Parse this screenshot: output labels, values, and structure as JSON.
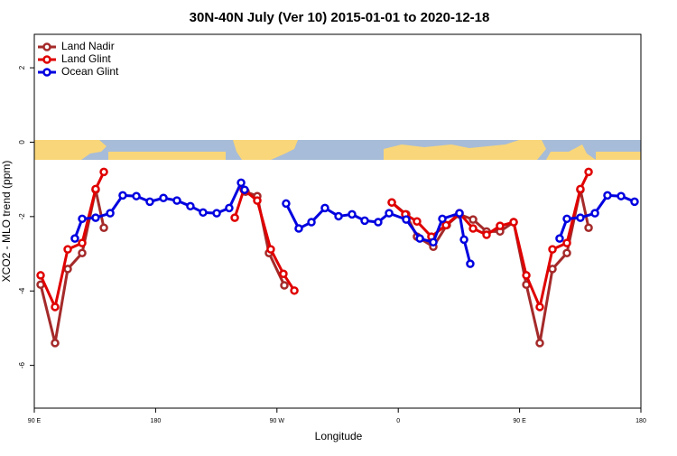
{
  "chart_data": {
    "type": "line",
    "title": "30N-40N July (Ver 10)   2015-01-01 to 2020-12-18",
    "xlabel": "Longitude",
    "ylabel": "XCO2 - MLO trend (ppm)",
    "xlim": [
      90,
      540
    ],
    "xticks": [
      {
        "value": 90,
        "label": "90 E"
      },
      {
        "value": 180,
        "label": "180"
      },
      {
        "value": 270,
        "label": "90 W"
      },
      {
        "value": 360,
        "label": "0"
      },
      {
        "value": 450,
        "label": "90 E"
      },
      {
        "value": 540,
        "label": "180"
      }
    ],
    "ylim": [
      -7.15,
      2.9
    ],
    "yticks": [
      2,
      0,
      -2,
      -4,
      -6
    ],
    "legend": "top-left",
    "series": [
      {
        "name": "Land Nadir",
        "color": "#a52a2a",
        "x": [
          94.7,
          105.4,
          114.8,
          125.5,
          135.5,
          141.6,
          null,
          246.7,
          255.4,
          264.1,
          275.5,
          null,
          355.2,
          365.9,
          373.9,
          386,
          396,
          405.4,
          415.5,
          425.5,
          435.5,
          445.6,
          455,
          465,
          474.4,
          485.1,
          495.1,
          501.2
        ],
        "values": [
          -3.83,
          -5.4,
          -3.41,
          -2.98,
          -1.28,
          -2.3,
          null,
          -1.33,
          -1.45,
          -2.98,
          -3.85,
          null,
          -1.62,
          -1.94,
          -2.54,
          -2.81,
          -2.23,
          -1.94,
          -2.08,
          -2.4,
          -2.4,
          -2.15,
          -3.83,
          -5.4,
          -3.41,
          -2.98,
          -1.28,
          -2.3
        ]
      },
      {
        "name": "Land Glint",
        "color": "#e00000",
        "x": [
          94.7,
          105.4,
          114.8,
          125.5,
          135.5,
          141.6,
          null,
          238.7,
          245.4,
          255.4,
          265.4,
          274.8,
          282.9,
          null,
          355.2,
          365.2,
          373.9,
          384.6,
          395.4,
          405.4,
          415.5,
          425.5,
          435.5,
          445.6,
          455,
          465,
          474.4,
          485.1,
          495.1,
          501.2
        ],
        "values": [
          -3.58,
          -4.43,
          -2.88,
          -2.71,
          -1.26,
          -0.8,
          null,
          -2.03,
          -1.28,
          -1.57,
          -2.88,
          -3.54,
          -3.99,
          null,
          -1.62,
          -1.94,
          -2.13,
          -2.54,
          -2.23,
          -1.91,
          -2.32,
          -2.49,
          -2.25,
          -2.15,
          -3.58,
          -4.43,
          -2.88,
          -2.71,
          -1.26,
          -0.8
        ]
      },
      {
        "name": "Ocean Glint",
        "color": "#0000e0",
        "x": [
          120.1,
          125.5,
          135.5,
          146.3,
          155.6,
          165.7,
          175.7,
          185.8,
          195.8,
          205.8,
          215.2,
          225.3,
          234.6,
          243.4,
          246,
          null,
          276.8,
          286.2,
          295.6,
          305.6,
          315.7,
          325.7,
          335.1,
          345.1,
          353.2,
          365.9,
          376,
          386,
          392.7,
          405.4,
          408.8,
          413.4,
          null,
          479.7,
          485.1,
          495.1,
          505.9,
          515.2,
          525.3,
          535.3
        ],
        "values": [
          -2.59,
          -2.06,
          -2.03,
          -1.91,
          -1.43,
          -1.45,
          -1.6,
          -1.5,
          -1.57,
          -1.72,
          -1.89,
          -1.91,
          -1.77,
          -1.09,
          -1.28,
          null,
          -1.65,
          -2.32,
          -2.15,
          -1.77,
          -1.99,
          -1.94,
          -2.11,
          -2.15,
          -1.91,
          -2.08,
          -2.59,
          -2.69,
          -2.06,
          -1.91,
          -2.62,
          -3.27,
          null,
          -2.59,
          -2.06,
          -2.03,
          -1.91,
          -1.43,
          -1.45,
          -1.6
        ]
      }
    ]
  }
}
